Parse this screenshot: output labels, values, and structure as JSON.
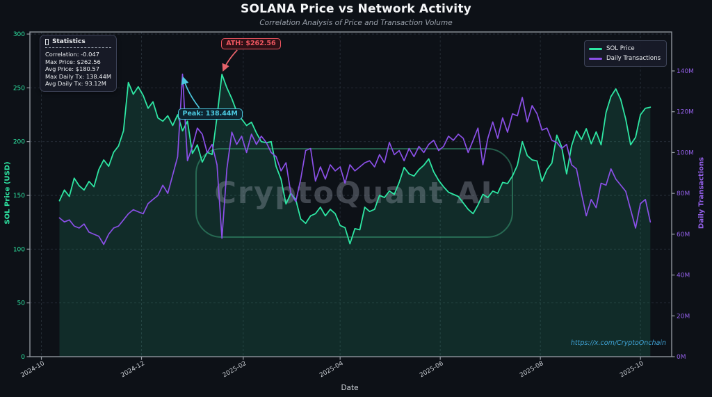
{
  "title": "SOLANA Price vs Network Activity",
  "subtitle": "Correlation Analysis of Price and Transaction Volume",
  "watermark": {
    "text": "CryptoQuant AI"
  },
  "footer_link": "https://x.com/CryptoOnchain",
  "stats_panel": {
    "title": "Statistics",
    "icon": "bar-chart-icon",
    "lines": [
      "Correlation: -0.047",
      "Max Price: $262.56",
      "Avg Price: $180.57",
      "Max Daily Tx: 138.44M",
      "Avg Daily Tx: 93.12M"
    ]
  },
  "annotations": [
    {
      "text": "ATH: $262.56",
      "target_series": 0,
      "target": "max",
      "color": "#ef5660",
      "bg": "#2d1016",
      "arrow_color": "#e8636b"
    },
    {
      "text": "Peak: 138.44M",
      "target_series": 1,
      "target": "max",
      "color": "#4cc9e0",
      "bg": "#0d2430",
      "arrow_color": "#4cc9e0"
    }
  ],
  "chart_data": {
    "type": "line",
    "title": "SOLANA Price vs Network Activity",
    "xlabel": "Date",
    "start_date": "2024-10-12",
    "step_days": 3,
    "x_range": [
      "2024-09-24",
      "2025-10-20"
    ],
    "x_ticks": [
      {
        "label": "2024-10",
        "date": "2024-10-01"
      },
      {
        "label": "2024-12",
        "date": "2024-12-01"
      },
      {
        "label": "2025-02",
        "date": "2025-02-01"
      },
      {
        "label": "2025-04",
        "date": "2025-04-01"
      },
      {
        "label": "2025-06",
        "date": "2025-06-01"
      },
      {
        "label": "2025-08",
        "date": "2025-08-01"
      },
      {
        "label": "2025-10",
        "date": "2025-10-01"
      }
    ],
    "left_axis": {
      "label": "SOL Price (USD)",
      "min": 0,
      "max": 300,
      "ticks": [
        0,
        50,
        100,
        150,
        200,
        250,
        300
      ],
      "color": "#2ee6a3"
    },
    "right_axis": {
      "label": "Daily Transactions",
      "min": 0,
      "max": 140,
      "ticks": [
        0,
        20,
        40,
        60,
        80,
        100,
        120,
        140
      ],
      "tick_suffix": "M",
      "color": "#9460ea"
    },
    "grid": {
      "style": "dashed",
      "color": "#3c4754"
    },
    "series": [
      {
        "name": "SOL Price",
        "axis": "left",
        "color": "#2ee6a3",
        "fill": true,
        "fill_opacity": 0.13,
        "values": [
          145,
          155,
          149,
          166,
          159,
          155,
          163,
          158,
          174,
          183,
          177,
          190,
          196,
          210,
          255,
          244,
          251,
          243,
          231,
          237,
          222,
          219,
          224,
          215,
          225,
          210,
          219,
          189,
          197,
          181,
          190,
          188,
          223,
          262.56,
          250,
          240,
          228,
          221,
          215,
          218,
          208,
          200,
          199,
          200,
          177,
          165,
          142,
          152,
          146,
          128,
          124,
          131,
          133,
          139,
          131,
          137,
          133,
          122,
          120,
          105,
          119,
          118,
          139,
          135,
          137,
          150,
          148,
          154,
          151,
          162,
          176,
          170,
          168,
          174,
          178,
          184,
          172,
          164,
          158,
          153,
          151,
          149,
          143,
          137,
          133,
          141,
          151,
          148,
          154,
          152,
          162,
          161,
          168,
          178,
          200,
          187,
          183,
          182,
          163,
          174,
          180,
          206,
          195,
          170,
          196,
          210,
          202,
          212,
          198,
          209,
          197,
          227,
          242,
          249,
          239,
          221,
          197,
          204,
          225,
          231,
          232
        ]
      },
      {
        "name": "Daily Transactions",
        "axis": "right",
        "color": "#8b50e8",
        "fill": false,
        "values": [
          68,
          66,
          67,
          64,
          63,
          65,
          61,
          60,
          59,
          55,
          60,
          63,
          64,
          67,
          70,
          72,
          71,
          70,
          75,
          77,
          79,
          84,
          80,
          89,
          98,
          138.44,
          96,
          103,
          112,
          109,
          100,
          104,
          94,
          58,
          92,
          110,
          104,
          108,
          100,
          109,
          104,
          108,
          105,
          100,
          98,
          91,
          95,
          80,
          76,
          87,
          101,
          102,
          86,
          93,
          87,
          94,
          91,
          93,
          85,
          94,
          91,
          93,
          95,
          96,
          93,
          99,
          95,
          105,
          99,
          101,
          96,
          102,
          98,
          103,
          100,
          104,
          106,
          101,
          103,
          108,
          106,
          109,
          107,
          100,
          106,
          112,
          94,
          107,
          115,
          107,
          117,
          110,
          119,
          118,
          127,
          115,
          123,
          119,
          111,
          112,
          106,
          105,
          102,
          104,
          94,
          92,
          80,
          69,
          77,
          73,
          85,
          84,
          92,
          87,
          84,
          81,
          72,
          63,
          75,
          77,
          66
        ]
      }
    ]
  }
}
